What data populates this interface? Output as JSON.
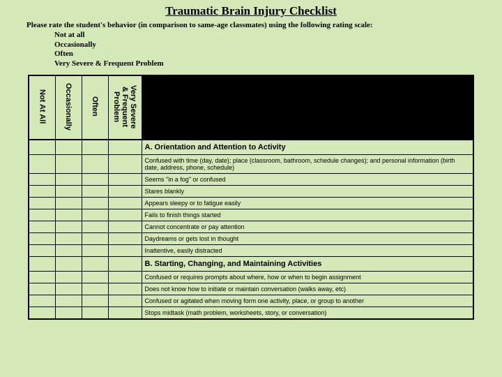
{
  "title": "Traumatic Brain Injury Checklist",
  "instructions": "Please rate the student's behavior (in comparison to same-age classmates) using the following rating scale:",
  "scale": {
    "s1": "Not at all",
    "s2": "Occasionally",
    "s3": "Often",
    "s4": "Very Severe & Frequent Problem"
  },
  "headers": {
    "h1": "Not At All",
    "h2": "Occasionally",
    "h3": "Often",
    "h4a": "Very Severe",
    "h4b": "& Frequent",
    "h4c": "Problem"
  },
  "sections": {
    "a_title": "A. Orientation and Attention to Activity",
    "a_items": {
      "i1": "Confused with time (day, date); place (classroom, bathroom, schedule changes); and personal information (birth date, address, phone, schedule)",
      "i2": "Seems \"in a fog\" or confused",
      "i3": "Stares blankly",
      "i4": "Appears sleepy or to fatigue easily",
      "i5": "Fails to finish things started",
      "i6": "Cannot concentrate or pay attention",
      "i7": "Daydreams or gets lost in thought",
      "i8": "Inattentive, easily distracted"
    },
    "b_title": "B. Starting, Changing, and Maintaining Activities",
    "b_items": {
      "i1": "Confused or requires prompts about where, how or when to begin assignment",
      "i2": "Does not know how to initiate or maintain conversation (walks away, etc)",
      "i3": "Confused or agitated when moving form one activity, place, or group to another",
      "i4": "Stops midtask (math problem, worksheets, story, or conversation)"
    }
  },
  "colors": {
    "background": "#d5e8b8",
    "border": "#000000",
    "header_block": "#000000"
  }
}
